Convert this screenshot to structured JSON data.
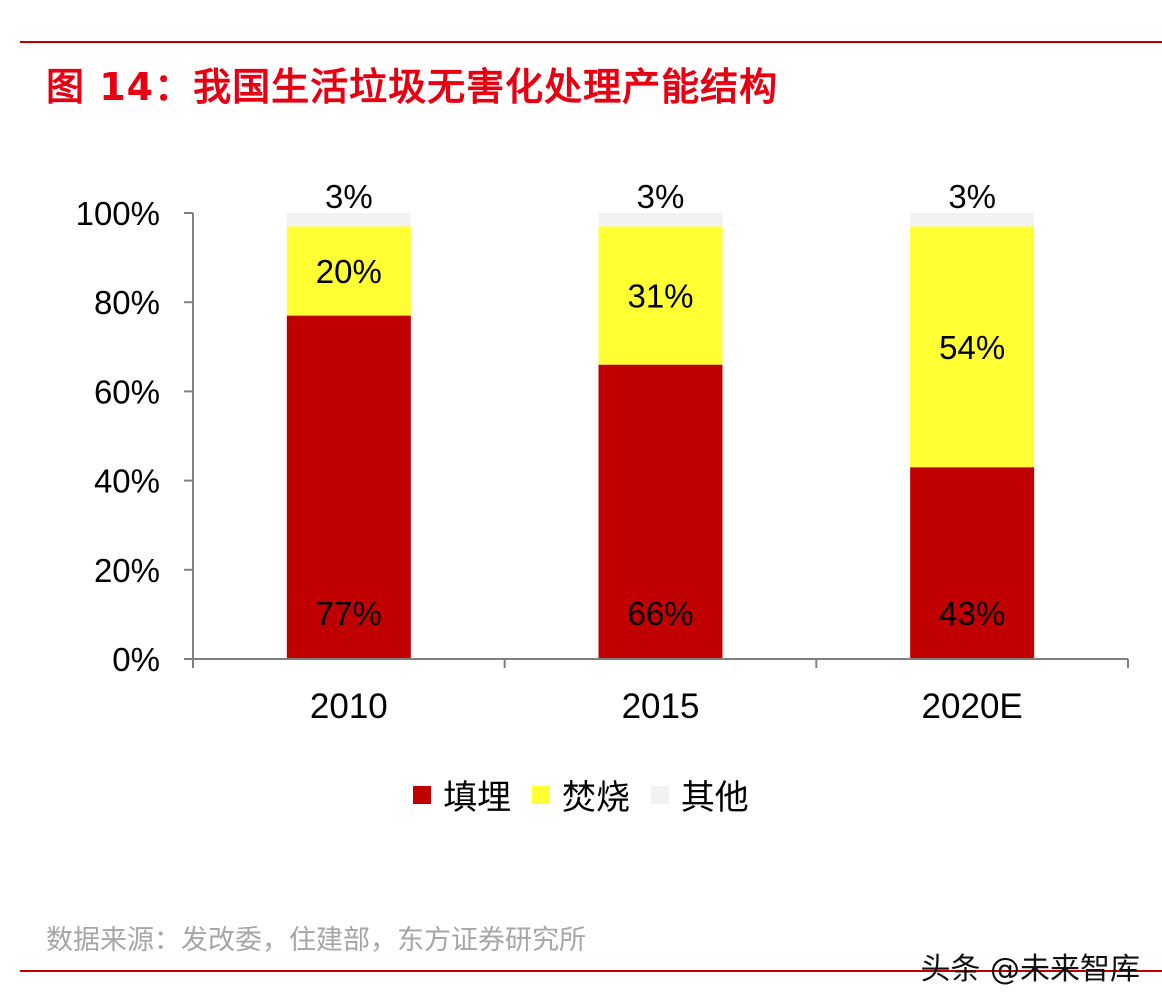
{
  "header": {
    "title": "图 14：我国生活垃圾无害化处理产能结构"
  },
  "footer": {
    "source": "数据来源：发改委，住建部，东方证券研究所",
    "watermark": "头条 @未来智库"
  },
  "chart_data": {
    "type": "bar",
    "stacked": true,
    "categories": [
      "2010",
      "2015",
      "2020E"
    ],
    "series": [
      {
        "name": "填埋",
        "values": [
          77,
          66,
          43
        ],
        "labels": [
          "77%",
          "66%",
          "43%"
        ],
        "color": "#c00000"
      },
      {
        "name": "焚烧",
        "values": [
          20,
          31,
          54
        ],
        "labels": [
          "20%",
          "31%",
          "54%"
        ],
        "color": "#ffff33"
      },
      {
        "name": "其他",
        "values": [
          3,
          3,
          3
        ],
        "labels": [
          "3%",
          "3%",
          "3%"
        ],
        "color": "#f2f2f2"
      }
    ],
    "yticks": [
      "0%",
      "20%",
      "40%",
      "60%",
      "80%",
      "100%"
    ],
    "ylim": [
      0,
      100
    ],
    "legend_position": "bottom",
    "grid": false
  }
}
